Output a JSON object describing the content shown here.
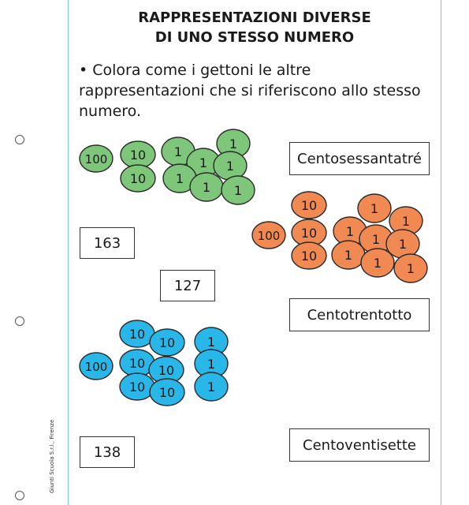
{
  "title": {
    "line1": "RAPPRESENTAZIONI DIVERSE",
    "line2": "DI UNO STESSO NUMERO"
  },
  "instruction": "• Colora come i gettoni le altre rappresentazioni che si riferiscono allo stesso numero.",
  "number_boxes": [
    "163",
    "127",
    "138"
  ],
  "word_boxes": [
    "Centosessantatré",
    "Centotrentotto",
    "Centoventisette"
  ],
  "credit": "Giunti Scuola S.r.l., Firenze",
  "colors": {
    "green": "#7dc67a",
    "orange": "#f08a52",
    "blue": "#29b6e8",
    "frame": "#6ec6e6"
  },
  "token_groups": {
    "green": {
      "hundreds": 1,
      "tens": 2,
      "ones": 7
    },
    "orange": {
      "hundreds": 1,
      "tens": 3,
      "ones": 8
    },
    "blue": {
      "hundreds": 1,
      "tens": 6,
      "ones": 3
    }
  },
  "token_labels": {
    "hundred": "100",
    "ten": "10",
    "one": "1"
  }
}
